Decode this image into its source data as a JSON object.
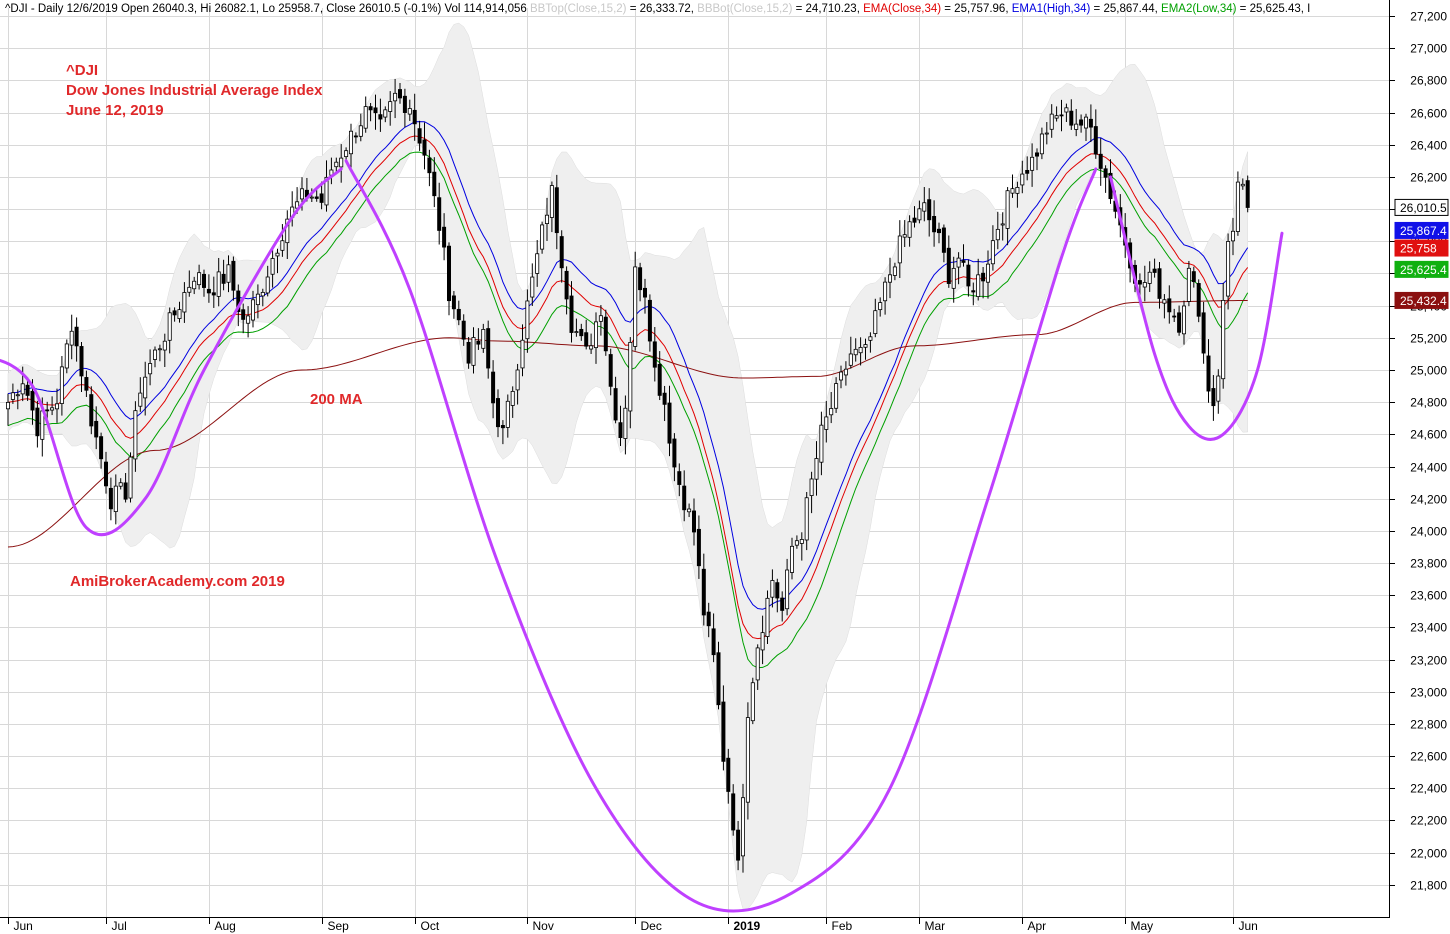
{
  "header": {
    "parts": [
      {
        "text": "^DJI - Daily 12/6/2019 Open 26040.3, Hi 26082.1, Lo 25958.7, Close 26010.5 (-0.1%) Vol 114,914,056 ",
        "color": "#000000"
      },
      {
        "text": "BBTop(Close,15,2)",
        "color": "#c8c8c8"
      },
      {
        "text": " = 26,333.72, ",
        "color": "#000000"
      },
      {
        "text": "BBBot(Close,15,2)",
        "color": "#c8c8c8"
      },
      {
        "text": " = 24,710.23, ",
        "color": "#000000"
      },
      {
        "text": "EMA(Close,34)",
        "color": "#e00000"
      },
      {
        "text": " = 25,757.96, ",
        "color": "#000000"
      },
      {
        "text": "EMA1(High,34)",
        "color": "#0000e0"
      },
      {
        "text": " = 25,867.44, ",
        "color": "#000000"
      },
      {
        "text": "EMA2(Low,34)",
        "color": "#00a000"
      },
      {
        "text": " = 25,625.43, I",
        "color": "#000000"
      }
    ]
  },
  "annotations": {
    "title_lines": [
      "^DJI",
      "Dow Jones Industrial Average Index",
      "June 12, 2019"
    ],
    "ma_label": "200 MA",
    "watermark": "AmiBrokerAcademy.com  2019"
  },
  "badges": [
    {
      "text": "26,010.5",
      "value": 26010.5,
      "bg": "#ffffff",
      "fg": "#000000",
      "border": "#000000"
    },
    {
      "text": "25,867.4",
      "value": 25867.4,
      "bg": "#1010e8",
      "fg": "#ffffff",
      "border": "#1010e8"
    },
    {
      "text": "25,758",
      "value": 25758,
      "bg": "#e01010",
      "fg": "#ffffff",
      "border": "#e01010"
    },
    {
      "text": "25,625.4",
      "value": 25625.4,
      "bg": "#10b010",
      "fg": "#ffffff",
      "border": "#10b010"
    },
    {
      "text": "25,432.4",
      "value": 25432.4,
      "bg": "#8b1010",
      "fg": "#ffffff",
      "border": "#8b1010"
    }
  ],
  "chart_data": {
    "type": "candlestick",
    "ylim": [
      21600,
      27250
    ],
    "y_ticks": [
      21800,
      22000,
      22200,
      22400,
      22600,
      22800,
      23000,
      23200,
      23400,
      23600,
      23800,
      24000,
      24200,
      24400,
      24600,
      24800,
      25000,
      25200,
      25400,
      25600,
      25800,
      26000,
      26200,
      26400,
      26600,
      26800,
      27000,
      27200
    ],
    "y_tick_labels": [
      "21,800",
      "22,000",
      "22,200",
      "22,400",
      "22,600",
      "22,800",
      "23,000",
      "23,200",
      "23,400",
      "23,600",
      "23,800",
      "24,000",
      "24,200",
      "24,400",
      "24,600",
      "24,800",
      "25,000",
      "25,200",
      "25,400",
      "25,600",
      "25,800",
      "26,000",
      "26,200",
      "26,400",
      "26,600",
      "26,800",
      "27,000",
      "27,200"
    ],
    "x_labels": [
      {
        "label": "Jun",
        "bar": 0,
        "bold": false
      },
      {
        "label": "Jul",
        "bar": 20,
        "bold": false
      },
      {
        "label": "Aug",
        "bar": 41,
        "bold": false
      },
      {
        "label": "Sep",
        "bar": 64,
        "bold": false
      },
      {
        "label": "Oct",
        "bar": 83,
        "bold": false
      },
      {
        "label": "Nov",
        "bar": 106,
        "bold": false
      },
      {
        "label": "Dec",
        "bar": 128,
        "bold": false
      },
      {
        "label": "2019",
        "bar": 147,
        "bold": true
      },
      {
        "label": "Feb",
        "bar": 167,
        "bold": false
      },
      {
        "label": "Mar",
        "bar": 186,
        "bold": false
      },
      {
        "label": "Apr",
        "bar": 207,
        "bold": false
      },
      {
        "label": "May",
        "bar": 228,
        "bold": false
      },
      {
        "label": "Jun",
        "bar": 250,
        "bold": false
      }
    ],
    "anchors": [
      [
        0,
        24800
      ],
      [
        3,
        24950
      ],
      [
        6,
        24650
      ],
      [
        10,
        24820
      ],
      [
        13,
        25300
      ],
      [
        17,
        24700
      ],
      [
        21,
        24200
      ],
      [
        24,
        24250
      ],
      [
        27,
        24900
      ],
      [
        30,
        25100
      ],
      [
        34,
        25350
      ],
      [
        38,
        25600
      ],
      [
        41,
        25500
      ],
      [
        45,
        25600
      ],
      [
        48,
        25300
      ],
      [
        51,
        25450
      ],
      [
        54,
        25700
      ],
      [
        57,
        25950
      ],
      [
        61,
        26100
      ],
      [
        64,
        26050
      ],
      [
        66,
        26250
      ],
      [
        70,
        26450
      ],
      [
        73,
        26600
      ],
      [
        76,
        26500
      ],
      [
        79,
        26700
      ],
      [
        82,
        26650
      ],
      [
        84,
        26450
      ],
      [
        85,
        26350
      ],
      [
        88,
        25900
      ],
      [
        90,
        25500
      ],
      [
        92,
        25300
      ],
      [
        94,
        25100
      ],
      [
        97,
        25200
      ],
      [
        99,
        24800
      ],
      [
        101,
        24600
      ],
      [
        103,
        24900
      ],
      [
        106,
        25400
      ],
      [
        108,
        25700
      ],
      [
        110,
        26000
      ],
      [
        111,
        26100
      ],
      [
        113,
        25700
      ],
      [
        115,
        25300
      ],
      [
        118,
        25100
      ],
      [
        121,
        25400
      ],
      [
        123,
        24900
      ],
      [
        125,
        24600
      ],
      [
        126,
        24800
      ],
      [
        128,
        25600
      ],
      [
        130,
        25500
      ],
      [
        132,
        25000
      ],
      [
        134,
        24800
      ],
      [
        136,
        24400
      ],
      [
        138,
        24200
      ],
      [
        140,
        24000
      ],
      [
        142,
        23500
      ],
      [
        144,
        23200
      ],
      [
        146,
        22600
      ],
      [
        148,
        22200
      ],
      [
        149,
        21900
      ],
      [
        151,
        22900
      ],
      [
        153,
        23300
      ],
      [
        156,
        23700
      ],
      [
        158,
        23500
      ],
      [
        160,
        23900
      ],
      [
        162,
        24000
      ],
      [
        164,
        24300
      ],
      [
        166,
        24600
      ],
      [
        169,
        24850
      ],
      [
        172,
        25100
      ],
      [
        175,
        25100
      ],
      [
        178,
        25400
      ],
      [
        181,
        25700
      ],
      [
        184,
        25900
      ],
      [
        187,
        26000
      ],
      [
        190,
        25800
      ],
      [
        192,
        25600
      ],
      [
        194,
        25700
      ],
      [
        196,
        25500
      ],
      [
        199,
        25600
      ],
      [
        202,
        25900
      ],
      [
        206,
        26200
      ],
      [
        209,
        26300
      ],
      [
        212,
        26500
      ],
      [
        215,
        26600
      ],
      [
        218,
        26550
      ],
      [
        221,
        26500
      ],
      [
        223,
        26300
      ],
      [
        225,
        26100
      ],
      [
        227,
        25900
      ],
      [
        229,
        25700
      ],
      [
        231,
        25500
      ],
      [
        233,
        25600
      ],
      [
        235,
        25500
      ],
      [
        237,
        25400
      ],
      [
        239,
        25300
      ],
      [
        241,
        25600
      ],
      [
        243,
        25400
      ],
      [
        244,
        25100
      ],
      [
        245,
        24900
      ],
      [
        246,
        24800
      ],
      [
        247,
        25000
      ],
      [
        248,
        25400
      ],
      [
        249,
        25800
      ],
      [
        250,
        25900
      ],
      [
        251,
        26150
      ],
      [
        252,
        26100
      ],
      [
        253,
        26010
      ]
    ],
    "series": [
      {
        "name": "BBTop(Close,15,2)",
        "value": 26333.72
      },
      {
        "name": "BBBot(Close,15,2)",
        "value": 24710.23
      },
      {
        "name": "EMA(Close,34)",
        "value": 25757.96
      },
      {
        "name": "EMA1(High,34)",
        "value": 25867.44
      },
      {
        "name": "EMA2(Low,34)",
        "value": 25625.43
      }
    ],
    "ma200_anchors": [
      [
        0,
        23900
      ],
      [
        30,
        24500
      ],
      [
        60,
        25000
      ],
      [
        90,
        25200
      ],
      [
        100,
        25180
      ],
      [
        120,
        25150
      ],
      [
        150,
        24950
      ],
      [
        165,
        24960
      ],
      [
        185,
        25150
      ],
      [
        210,
        25220
      ],
      [
        230,
        25420
      ],
      [
        253,
        25432
      ]
    ],
    "curves": [
      {
        "points": [
          [
            -6,
            25100
          ],
          [
            5,
            24900
          ],
          [
            16,
            24020
          ],
          [
            28,
            24200
          ],
          [
            40,
            25000
          ],
          [
            58,
            25950
          ],
          [
            68,
            26250
          ]
        ]
      },
      {
        "points": [
          [
            69,
            26300
          ],
          [
            82,
            25500
          ],
          [
            100,
            23800
          ],
          [
            120,
            22400
          ],
          [
            140,
            21700
          ],
          [
            160,
            21750
          ],
          [
            180,
            22400
          ],
          [
            200,
            24200
          ],
          [
            215,
            25700
          ],
          [
            222,
            26250
          ]
        ]
      },
      {
        "points": [
          [
            225,
            26200
          ],
          [
            234,
            25100
          ],
          [
            241,
            24650
          ],
          [
            248,
            24600
          ],
          [
            255,
            25000
          ],
          [
            260,
            25850
          ]
        ]
      }
    ],
    "colors": {
      "up": "#000000",
      "down": "#000000",
      "ema": "#e00000",
      "ema_high": "#0000e0",
      "ema_low": "#00a000",
      "ma200": "#8b1010",
      "band": "#efefef",
      "curve": "#bf40ff",
      "grid": "#d8d8d8"
    }
  }
}
